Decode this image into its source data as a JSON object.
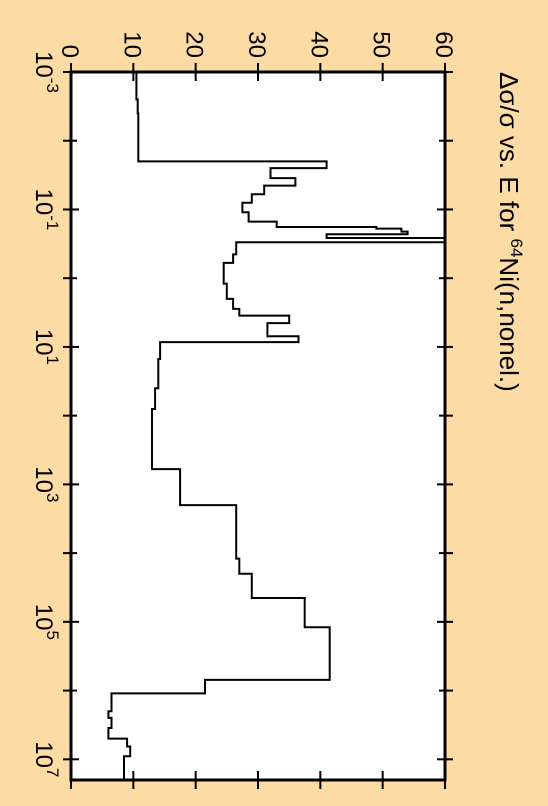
{
  "colors": {
    "background": "#FCDCA4",
    "plot_area": "#FFFFFF",
    "line": "#000000"
  },
  "chart_data": {
    "type": "line",
    "step": true,
    "orientation": "rotated-90-clockwise",
    "title": {
      "prefix": "Δσ/σ vs. E for ",
      "isotope_mass": "64",
      "suffix": "Ni(n,nonel.)"
    },
    "x_axis": {
      "scale": "log",
      "lim": [
        0.001,
        20000000
      ],
      "ticks": [
        {
          "value": 0.001,
          "base": "10",
          "exp": "-3"
        },
        {
          "value": 0.1,
          "base": "10",
          "exp": "-1"
        },
        {
          "value": 10,
          "base": "10",
          "exp": "1"
        },
        {
          "value": 1000,
          "base": "10",
          "exp": "3"
        },
        {
          "value": 100000,
          "base": "10",
          "exp": "5"
        },
        {
          "value": 10000000,
          "base": "10",
          "exp": "7"
        }
      ],
      "minor_ticks": [
        0.01,
        1,
        100,
        10000,
        1000000
      ]
    },
    "y_axis": {
      "lim": [
        0,
        60
      ],
      "ticks": [
        "0",
        "10",
        "20",
        "30",
        "40",
        "50",
        "60"
      ]
    },
    "grid": false,
    "series": [
      {
        "points": [
          [
            0.001,
            10.5
          ],
          [
            0.0025,
            10.7
          ],
          [
            0.004,
            10.8
          ],
          [
            0.01,
            10.8
          ],
          [
            0.02,
            41
          ],
          [
            0.025,
            32
          ],
          [
            0.035,
            36
          ],
          [
            0.045,
            31
          ],
          [
            0.06,
            29
          ],
          [
            0.08,
            27.5
          ],
          [
            0.11,
            28.5
          ],
          [
            0.15,
            33
          ],
          [
            0.18,
            49
          ],
          [
            0.19,
            53
          ],
          [
            0.21,
            54
          ],
          [
            0.23,
            41
          ],
          [
            0.26,
            60
          ],
          [
            0.3,
            26.5
          ],
          [
            0.45,
            26
          ],
          [
            0.6,
            24.5
          ],
          [
            1.2,
            25
          ],
          [
            2.0,
            26
          ],
          [
            2.8,
            27
          ],
          [
            3.5,
            35
          ],
          [
            4.5,
            31.5
          ],
          [
            5.5,
            31.5
          ],
          [
            7.0,
            36.5
          ],
          [
            8.5,
            14.3
          ],
          [
            15,
            14
          ],
          [
            40,
            13.5
          ],
          [
            80,
            13
          ],
          [
            200,
            13
          ],
          [
            600,
            17.5
          ],
          [
            2000,
            26.5
          ],
          [
            12000,
            27
          ],
          [
            20000,
            29
          ],
          [
            45000,
            37.5
          ],
          [
            120000,
            41.5
          ],
          [
            700000,
            21.5
          ],
          [
            1100000,
            6.5
          ],
          [
            2000000,
            6
          ],
          [
            2500000,
            6.5
          ],
          [
            3500000,
            6
          ],
          [
            5000000,
            9
          ],
          [
            6500000,
            9.5
          ],
          [
            9000000,
            8.5
          ],
          [
            20000000,
            8.5
          ]
        ]
      }
    ]
  }
}
